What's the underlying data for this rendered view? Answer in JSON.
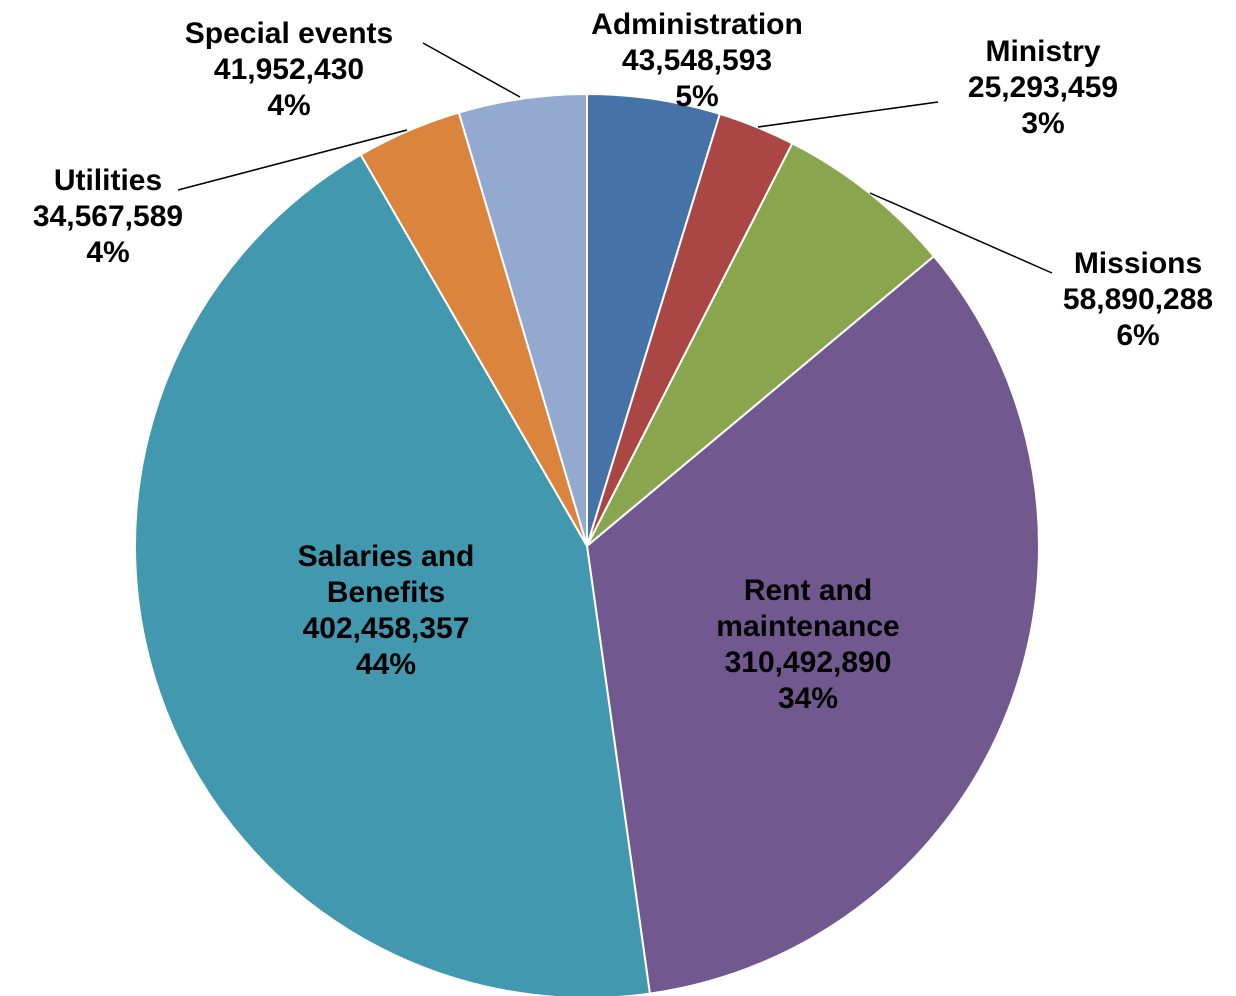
{
  "chart_data": {
    "type": "pie",
    "title": "",
    "start_angle_deg": 0,
    "direction": "clockwise",
    "slices": [
      {
        "name": "Administration",
        "value": 43548593,
        "value_label": "43,548,593",
        "percent_label": "5%",
        "color": "#4572A7"
      },
      {
        "name": "Ministry",
        "value": 25293459,
        "value_label": "25,293,459",
        "percent_label": "3%",
        "color": "#AA4643"
      },
      {
        "name": "Missions",
        "value": 58890288,
        "value_label": "58,890,288",
        "percent_label": "6%",
        "color": "#89A54E"
      },
      {
        "name": "Rent and maintenance",
        "value": 310492890,
        "value_label": "310,492,890",
        "percent_label": "34%",
        "color": "#71588F"
      },
      {
        "name": "Salaries and Benefits",
        "value": 402458357,
        "value_label": "402,458,357",
        "percent_label": "44%",
        "color": "#4198AF"
      },
      {
        "name": "Utilities",
        "value": 34567589,
        "value_label": "34,567,589",
        "percent_label": "4%",
        "color": "#DB843D"
      },
      {
        "name": "Special events",
        "value": 41952430,
        "value_label": "41,952,430",
        "percent_label": "4%",
        "color": "#93A9CF"
      }
    ]
  }
}
